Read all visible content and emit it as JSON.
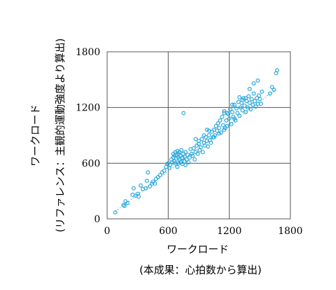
{
  "chart_data": {
    "type": "scatter",
    "title": "",
    "xlabel_line1": "ワークロード",
    "xlabel_line2": "(本成果：心拍数から算出)",
    "ylabel_line1": "ワークロード",
    "ylabel_line2": "(リファレンス：主観的運動強度より算出)",
    "xlim": [
      0,
      1800
    ],
    "ylim": [
      0,
      1800
    ],
    "xticks": [
      0,
      600,
      1200,
      1800
    ],
    "yticks": [
      0,
      600,
      1200,
      1800
    ],
    "grid": true,
    "trendline": {
      "style": "dotted",
      "x": [
        80,
        1650
      ],
      "y": [
        80,
        1390
      ]
    },
    "colors": {
      "points": "#29a8dc",
      "trendline": "#3aa0c8",
      "grid": "#555555"
    },
    "points": [
      [
        80,
        70
      ],
      [
        160,
        150
      ],
      [
        170,
        140
      ],
      [
        180,
        190
      ],
      [
        200,
        170
      ],
      [
        250,
        260
      ],
      [
        260,
        330
      ],
      [
        280,
        250
      ],
      [
        300,
        270
      ],
      [
        310,
        240
      ],
      [
        330,
        360
      ],
      [
        350,
        320
      ],
      [
        380,
        330
      ],
      [
        390,
        410
      ],
      [
        400,
        500
      ],
      [
        420,
        350
      ],
      [
        440,
        380
      ],
      [
        450,
        400
      ],
      [
        470,
        380
      ],
      [
        480,
        430
      ],
      [
        500,
        450
      ],
      [
        520,
        470
      ],
      [
        540,
        500
      ],
      [
        560,
        520
      ],
      [
        580,
        560
      ],
      [
        590,
        590
      ],
      [
        600,
        600
      ],
      [
        610,
        550
      ],
      [
        620,
        580
      ],
      [
        630,
        640
      ],
      [
        640,
        610
      ],
      [
        650,
        660
      ],
      [
        650,
        700
      ],
      [
        660,
        620
      ],
      [
        660,
        680
      ],
      [
        670,
        600
      ],
      [
        670,
        720
      ],
      [
        680,
        650
      ],
      [
        680,
        690
      ],
      [
        690,
        560
      ],
      [
        690,
        730
      ],
      [
        700,
        600
      ],
      [
        700,
        660
      ],
      [
        700,
        700
      ],
      [
        710,
        640
      ],
      [
        710,
        720
      ],
      [
        720,
        610
      ],
      [
        720,
        680
      ],
      [
        730,
        620
      ],
      [
        730,
        740
      ],
      [
        740,
        590
      ],
      [
        740,
        660
      ],
      [
        750,
        700
      ],
      [
        750,
        1140
      ],
      [
        760,
        620
      ],
      [
        760,
        670
      ],
      [
        770,
        720
      ],
      [
        770,
        580
      ],
      [
        780,
        640
      ],
      [
        790,
        690
      ],
      [
        800,
        610
      ],
      [
        810,
        660
      ],
      [
        820,
        750
      ],
      [
        830,
        700
      ],
      [
        840,
        680
      ],
      [
        850,
        760
      ],
      [
        860,
        640
      ],
      [
        870,
        720
      ],
      [
        880,
        790
      ],
      [
        890,
        700
      ],
      [
        900,
        810
      ],
      [
        910,
        740
      ],
      [
        920,
        770
      ],
      [
        930,
        860
      ],
      [
        940,
        720
      ],
      [
        950,
        820
      ],
      [
        960,
        790
      ],
      [
        970,
        880
      ],
      [
        980,
        840
      ],
      [
        990,
        780
      ],
      [
        1000,
        900
      ],
      [
        1010,
        850
      ],
      [
        1020,
        820
      ],
      [
        1030,
        940
      ],
      [
        1040,
        880
      ],
      [
        1050,
        960
      ],
      [
        1060,
        900
      ],
      [
        1070,
        1000
      ],
      [
        1080,
        950
      ],
      [
        1090,
        1030
      ],
      [
        1100,
        980
      ],
      [
        1110,
        1060
      ],
      [
        1120,
        930
      ],
      [
        1130,
        1100
      ],
      [
        1140,
        1010
      ],
      [
        1150,
        1140
      ],
      [
        1160,
        980
      ],
      [
        1170,
        1060
      ],
      [
        1180,
        1000
      ],
      [
        1190,
        1130
      ],
      [
        1200,
        1080
      ],
      [
        1210,
        1180
      ],
      [
        1220,
        1020
      ],
      [
        1230,
        1150
      ],
      [
        1240,
        1100
      ],
      [
        1250,
        1230
      ],
      [
        1260,
        1060
      ],
      [
        1270,
        1190
      ],
      [
        1280,
        1140
      ],
      [
        1290,
        1260
      ],
      [
        1300,
        1110
      ],
      [
        1310,
        1200
      ],
      [
        1320,
        1250
      ],
      [
        1330,
        1170
      ],
      [
        1340,
        1300
      ],
      [
        1350,
        1220
      ],
      [
        1360,
        1150
      ],
      [
        1370,
        1270
      ],
      [
        1380,
        1200
      ],
      [
        1390,
        1320
      ],
      [
        1400,
        1250
      ],
      [
        1410,
        1180
      ],
      [
        1420,
        1290
      ],
      [
        1430,
        1230
      ],
      [
        1440,
        1350
      ],
      [
        1450,
        1270
      ],
      [
        1460,
        1210
      ],
      [
        1470,
        1300
      ],
      [
        1480,
        1240
      ],
      [
        1490,
        1330
      ],
      [
        1500,
        1290
      ],
      [
        1510,
        1240
      ],
      [
        1520,
        1370
      ],
      [
        1600,
        1350
      ],
      [
        1620,
        1420
      ],
      [
        1640,
        1390
      ],
      [
        1660,
        1570
      ],
      [
        1670,
        1600
      ],
      [
        1100,
        920
      ],
      [
        1150,
        960
      ],
      [
        1250,
        1080
      ],
      [
        1180,
        1140
      ],
      [
        1230,
        1230
      ],
      [
        1330,
        1280
      ],
      [
        1440,
        1460
      ],
      [
        1480,
        1490
      ],
      [
        1400,
        1400
      ],
      [
        1050,
        880
      ],
      [
        980,
        960
      ],
      [
        1000,
        950
      ],
      [
        870,
        860
      ],
      [
        900,
        840
      ],
      [
        950,
        900
      ],
      [
        1150,
        1160
      ],
      [
        1300,
        1310
      ],
      [
        1360,
        1300
      ]
    ]
  }
}
